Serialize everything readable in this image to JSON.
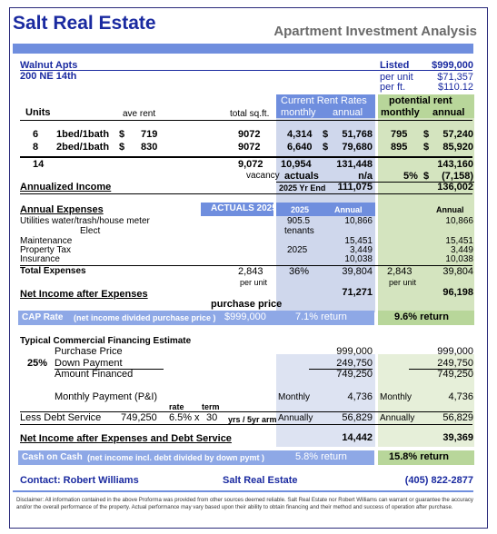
{
  "header": {
    "brand": "Salt Real Estate",
    "subtitle": "Apartment Investment Analysis"
  },
  "property": {
    "name": "Walnut Apts",
    "address": "200 NE 14th",
    "listed_label": "Listed",
    "listed_value": "$999,000",
    "per_unit_label": "per unit",
    "per_unit_value": "$71,357",
    "per_ft_label": "per ft.",
    "per_ft_value": "$110.12"
  },
  "rents_header": {
    "current_title": "Current Rent Rates",
    "current_monthly": "monthly",
    "current_annual": "annual",
    "potential_title": "potential rent",
    "potential_monthly": "monthly",
    "potential_annual": "annual"
  },
  "units_header": {
    "units": "Units",
    "ave_rent": "ave rent",
    "total_sqft": "total sq.ft."
  },
  "units": [
    {
      "count": "6",
      "type": "1bed/1bath",
      "dollar": "$",
      "ave": "719",
      "sqft": "9072",
      "cur_m": "4,314",
      "cur_d": "$",
      "cur_a": "51,768",
      "pot_m": "795",
      "pot_d": "$",
      "pot_a": "57,240"
    },
    {
      "count": "8",
      "type": "2bed/1bath",
      "dollar": "$",
      "ave": "830",
      "sqft": "9072",
      "cur_m": "6,640",
      "cur_d": "$",
      "cur_a": "79,680",
      "pot_m": "895",
      "pot_d": "$",
      "pot_a": "85,920"
    }
  ],
  "totals": {
    "count": "14",
    "sqft": "9,072",
    "cur_m": "10,954",
    "cur_a": "131,448",
    "pot_a": "143,160",
    "vacancy_label": "vacancy",
    "actuals_label": "actuals",
    "na": "n/a",
    "vac_pct": "5%",
    "vac_d": "$",
    "vac_value": "(7,158)",
    "yr_end": "2025 Yr End",
    "annualized_label": "Annualized Income",
    "annualized_cur": "111,075",
    "annualized_pot": "136,002"
  },
  "expenses": {
    "title": "Annual Expenses",
    "actuals_band": "ACTUALS 2025",
    "year_col": "2025",
    "annual_col": "Annual",
    "pot_annual_col": "Annual",
    "rows": [
      {
        "label": "Utilities  water/trash/house meter",
        "mid": "905.5",
        "cur": "10,866",
        "pot": "10,866"
      },
      {
        "label": "Elect",
        "mid": "tenants",
        "cur": "",
        "pot": ""
      },
      {
        "label": "Maintenance",
        "mid": "",
        "cur": "15,451",
        "pot": "15,451"
      },
      {
        "label": "Property Tax",
        "mid": "2025",
        "cur": "3,449",
        "pot": "3,449"
      },
      {
        "label": "Insurance",
        "mid": "",
        "cur": "10,038",
        "pot": "10,038"
      }
    ],
    "total_label": "Total Expenses",
    "total_per_unit": "2,843",
    "per_unit_label": "per unit",
    "total_pct": "36%",
    "total_cur": "39,804",
    "total_pot_pu": "2,843",
    "total_pot": "39,804",
    "pot_per_unit_label": "per unit"
  },
  "net_income": {
    "label": "Net Income after Expenses",
    "cur": "71,271",
    "pot": "96,198",
    "purchase_price_label": "purchase price"
  },
  "cap_rate": {
    "label": "CAP Rate",
    "note": "(net income divided purchase price )",
    "price": "$999,000",
    "cur": "7.1% return",
    "pot": "9.6% return"
  },
  "financing": {
    "title": "Typical Commercial Financing Estimate",
    "purchase_label": "Purchase Price",
    "purchase_cur": "999,000",
    "purchase_pot": "999,000",
    "down_pct": "25%",
    "down_label": "Down Payment",
    "down_cur": "249,750",
    "down_pot": "249,750",
    "financed_label": "Amount Financed",
    "financed_cur": "749,250",
    "financed_pot": "749,250",
    "monthly_label": "Monthly Payment (P&I)",
    "monthly_col": "Monthly",
    "monthly_cur": "4,736",
    "monthly_pot_col": "Monthly",
    "monthly_pot": "4,736",
    "rate_label": "rate",
    "term_label": "term",
    "debt_label": "Less Debt Service",
    "debt_amount": "749,250",
    "rate": "6.5%",
    "x": "x",
    "term": "30",
    "term_note": "yrs / 5yr arm",
    "annually_col": "Annually",
    "debt_cur": "56,829",
    "annually_pot_col": "Annually",
    "debt_pot": "56,829"
  },
  "net_after_debt": {
    "label": "Net Income after Expenses and Debt Service",
    "cur": "14,442",
    "pot": "39,369"
  },
  "cash_on_cash": {
    "label": "Cash on Cash",
    "note": "(net income incl. debt divided by down pymt )",
    "cur": "5.8% return",
    "pot": "15.8% return"
  },
  "footer": {
    "contact": "Contact:  Robert Williams",
    "company": "Salt Real Estate",
    "phone": "(405) 822-2877",
    "disclaimer1": "Disclaimer: All information contained in the above Proforma was provided from other sources deemed reliable. Salt Real Estate nor Robert Williams can warrant or guarantee  the accuracy",
    "disclaimer2": "and/or the overall performance of the property. Actual performance may vary based upon their ability to obtain financing and their method and success of operation after purchase."
  }
}
